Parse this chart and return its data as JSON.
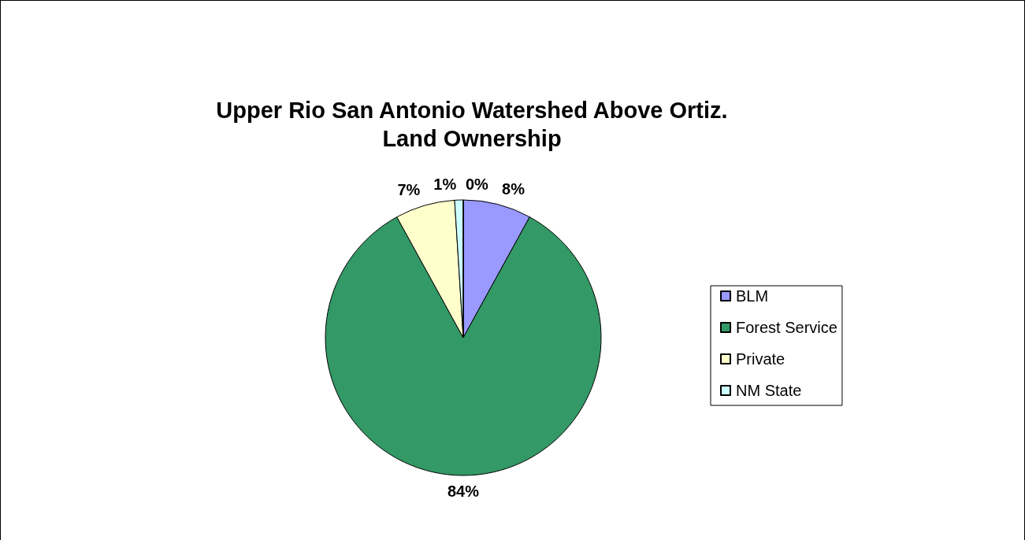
{
  "chart_data": {
    "type": "pie",
    "title": "Upper Rio San Antonio Watershed Above Ortiz. Land Ownership",
    "categories": [
      "BLM",
      "Forest Service",
      "Private",
      "NM State",
      null
    ],
    "values": [
      8,
      84,
      7,
      1,
      0
    ],
    "colors": [
      "#9999ff",
      "#339966",
      "#ffffcc",
      "#ccffff",
      "#ffffff"
    ],
    "value_labels": [
      "8%",
      "84%",
      "7%",
      "1%",
      "0%"
    ],
    "legend": "right"
  }
}
